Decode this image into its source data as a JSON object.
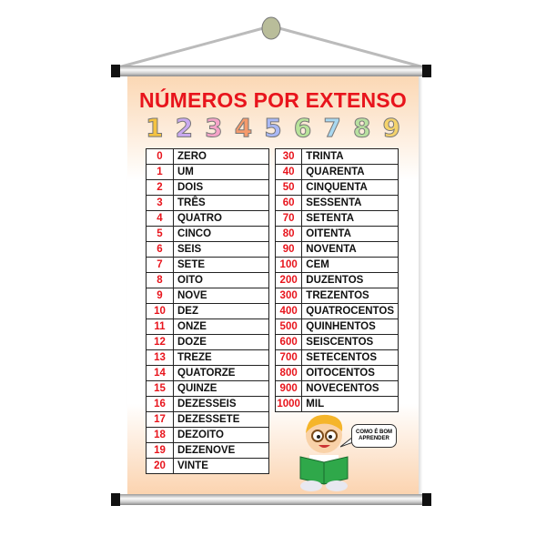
{
  "title": "NÚMEROS POR EXTENSO",
  "digits": [
    "1",
    "2",
    "3",
    "4",
    "5",
    "6",
    "7",
    "8",
    "9"
  ],
  "digit_colors": [
    "#f5c342",
    "#c9a9f0",
    "#f5a3c8",
    "#f59a6b",
    "#a9b8f5",
    "#b8e39a",
    "#a9d8f0",
    "#b8e0a0",
    "#f5d36b"
  ],
  "left_table": [
    [
      "0",
      "ZERO"
    ],
    [
      "1",
      "UM"
    ],
    [
      "2",
      "DOIS"
    ],
    [
      "3",
      "TRÊS"
    ],
    [
      "4",
      "QUATRO"
    ],
    [
      "5",
      "CINCO"
    ],
    [
      "6",
      "SEIS"
    ],
    [
      "7",
      "SETE"
    ],
    [
      "8",
      "OITO"
    ],
    [
      "9",
      "NOVE"
    ],
    [
      "10",
      "DEZ"
    ],
    [
      "11",
      "ONZE"
    ],
    [
      "12",
      "DOZE"
    ],
    [
      "13",
      "TREZE"
    ],
    [
      "14",
      "QUATORZE"
    ],
    [
      "15",
      "QUINZE"
    ],
    [
      "16",
      "DEZESSEIS"
    ],
    [
      "17",
      "DEZESSETE"
    ],
    [
      "18",
      "DEZOITO"
    ],
    [
      "19",
      "DEZENOVE"
    ],
    [
      "20",
      "VINTE"
    ]
  ],
  "right_table": [
    [
      "30",
      "TRINTA"
    ],
    [
      "40",
      "QUARENTA"
    ],
    [
      "50",
      "CINQUENTA"
    ],
    [
      "60",
      "SESSENTA"
    ],
    [
      "70",
      "SETENTA"
    ],
    [
      "80",
      "OITENTA"
    ],
    [
      "90",
      "NOVENTA"
    ],
    [
      "100",
      "CEM"
    ],
    [
      "200",
      "DUZENTOS"
    ],
    [
      "300",
      "TREZENTOS"
    ],
    [
      "400",
      "QUATROCENTOS"
    ],
    [
      "500",
      "QUINHENTOS"
    ],
    [
      "600",
      "SEISCENTOS"
    ],
    [
      "700",
      "SETECENTOS"
    ],
    [
      "800",
      "OITOCENTOS"
    ],
    [
      "900",
      "NOVECENTOS"
    ],
    [
      "1000",
      "MIL"
    ]
  ],
  "speech_bubble": "COMO É BOM APRENDER",
  "colors": {
    "title": "#e8141c",
    "number": "#e8141c"
  }
}
